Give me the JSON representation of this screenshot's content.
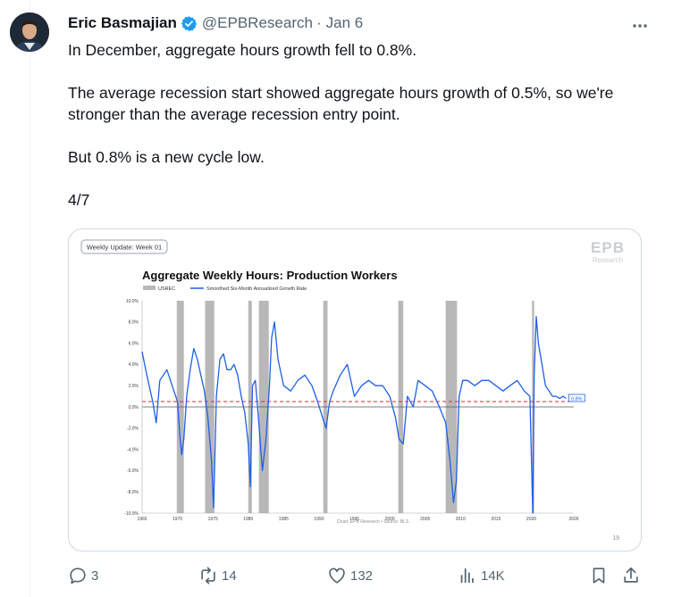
{
  "tweet": {
    "author_name": "Eric Basmajian",
    "handle": "@EPBResearch",
    "separator": "·",
    "date": "Jan 6",
    "paragraphs": [
      "In December, aggregate hours growth fell to 0.8%.",
      "The average recession start showed aggregate hours growth of 0.5%, so we're stronger than the average recession entry point.",
      "But 0.8% is a new cycle low.",
      "4/7"
    ]
  },
  "media": {
    "badge": "Weekly Update: Week 01",
    "logo_line1": "EPB",
    "logo_line2": "Research",
    "source": "Chart: EPB Research • Source: BLS",
    "page_number": "19"
  },
  "chart_data": {
    "type": "line",
    "title": "Aggregate Weekly Hours: Production Workers",
    "legend": [
      "USREC",
      "Smoothed Six-Month Annualized Growth Rate"
    ],
    "legend_position": "top-left",
    "colors": {
      "line": "#1f5fe8",
      "recession": "#b8b8b8",
      "reference": "#e0282e"
    },
    "ylim": [
      -10,
      10
    ],
    "yticks": [
      "10.0%",
      "8.0%",
      "6.0%",
      "4.0%",
      "2.0%",
      "0.0%",
      "-2.0%",
      "-4.0%",
      "-6.0%",
      "-8.0%",
      "-10.0%"
    ],
    "xlim": [
      1965,
      2026
    ],
    "xticks": [
      "1965",
      "1970",
      "1975",
      "1980",
      "1985",
      "1990",
      "1995",
      "2000",
      "2005",
      "2010",
      "2015",
      "2020",
      "2026"
    ],
    "reference_line": 0.5,
    "last_value_label": "0.8%",
    "recessions": [
      [
        1969.9,
        1970.9
      ],
      [
        1973.9,
        1975.2
      ],
      [
        1980.0,
        1980.5
      ],
      [
        1981.5,
        1982.9
      ],
      [
        1990.6,
        1991.2
      ],
      [
        2001.2,
        2001.9
      ],
      [
        2007.9,
        2009.5
      ],
      [
        2020.1,
        2020.4
      ]
    ],
    "series": [
      {
        "name": "Smoothed Six-Month Annualized Growth Rate",
        "x": [
          1965,
          1965.5,
          1966,
          1966.5,
          1967,
          1967.5,
          1968,
          1968.5,
          1969,
          1969.5,
          1970,
          1970.3,
          1970.6,
          1970.9,
          1971.3,
          1971.8,
          1972.3,
          1972.8,
          1973.3,
          1973.8,
          1974.3,
          1974.8,
          1975.1,
          1975.5,
          1976,
          1976.5,
          1977,
          1977.5,
          1978,
          1978.5,
          1979,
          1979.5,
          1980,
          1980.3,
          1980.6,
          1981,
          1981.5,
          1982,
          1982.5,
          1983,
          1983.3,
          1983.7,
          1984.2,
          1985,
          1986,
          1987,
          1988,
          1989,
          1989.8,
          1990.5,
          1991,
          1991.5,
          1992,
          1993,
          1994,
          1995,
          1996,
          1997,
          1998,
          1999,
          2000,
          2000.8,
          2001.3,
          2001.9,
          2002.5,
          2003.3,
          2004,
          2005,
          2006,
          2007,
          2007.9,
          2008.5,
          2009,
          2009.4,
          2009.8,
          2010.3,
          2011,
          2012,
          2013,
          2014,
          2015,
          2016,
          2017,
          2018,
          2019,
          2019.8,
          2020.2,
          2020.4,
          2020.7,
          2021,
          2021.5,
          2022,
          2022.5,
          2023,
          2023.5,
          2024,
          2024.5,
          2024.9
        ],
        "values": [
          5.2,
          3.5,
          2.0,
          0.5,
          -1.5,
          2.5,
          3.0,
          3.5,
          2.5,
          1.5,
          0.5,
          -2.5,
          -4.5,
          -3.0,
          1.0,
          3.5,
          5.5,
          4.5,
          3.0,
          1.5,
          -1.0,
          -5.0,
          -9.5,
          1.0,
          4.5,
          5.0,
          3.5,
          3.5,
          4.0,
          3.0,
          1.0,
          -0.5,
          -3.5,
          -7.5,
          2.0,
          2.5,
          -1.5,
          -6.0,
          -3.0,
          2.0,
          6.5,
          8.0,
          4.5,
          2.0,
          1.5,
          2.5,
          3.0,
          2.0,
          0.5,
          -1.0,
          -2.0,
          0.5,
          1.5,
          3.0,
          4.0,
          1.0,
          2.0,
          2.5,
          2.0,
          2.0,
          1.0,
          -1.0,
          -3.0,
          -3.5,
          1.0,
          0.0,
          2.5,
          2.0,
          1.5,
          0.0,
          -1.5,
          -5.0,
          -9.0,
          -7.0,
          1.0,
          2.5,
          2.5,
          2.0,
          2.5,
          2.5,
          2.0,
          1.5,
          2.0,
          2.5,
          1.5,
          1.0,
          -10.0,
          3.0,
          8.5,
          6.0,
          4.0,
          2.0,
          1.5,
          1.0,
          1.0,
          0.8,
          1.0,
          0.8
        ]
      }
    ]
  },
  "actions": {
    "replies": "3",
    "reposts": "14",
    "likes": "132",
    "views": "14K"
  }
}
